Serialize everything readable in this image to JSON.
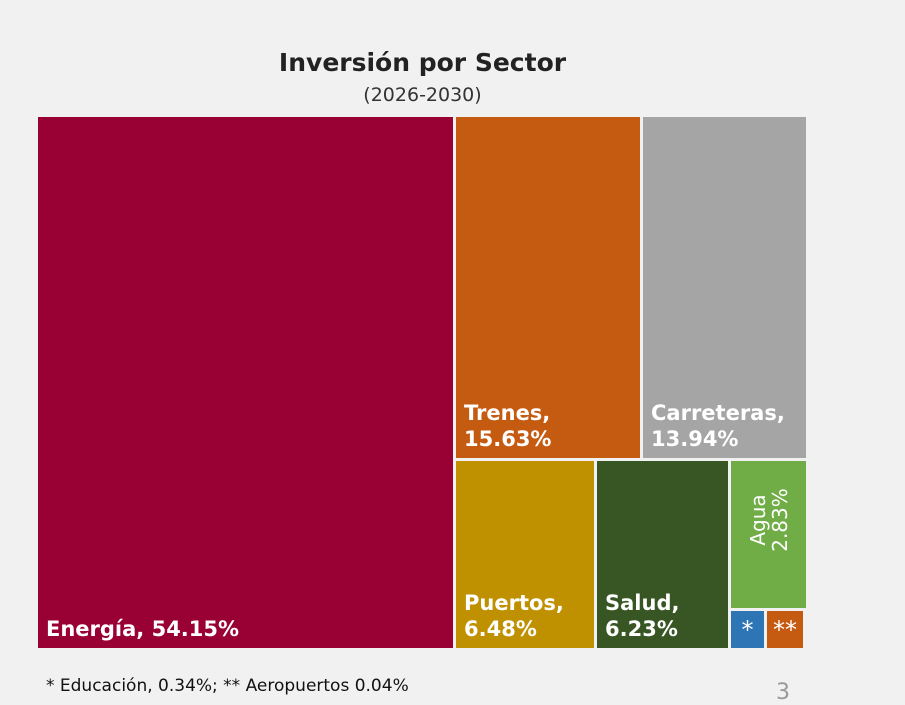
{
  "chart_data": {
    "type": "treemap",
    "title": "Inversión por Sector",
    "subtitle": "(2026-2030)",
    "items": [
      {
        "name": "Energía",
        "label": "Energía, 54.15%",
        "value": 54.15,
        "color": "#990033"
      },
      {
        "name": "Trenes",
        "label": "Trenes,\n15.63%",
        "value": 15.63,
        "color": "#c55a11"
      },
      {
        "name": "Carreteras",
        "label": "Carreteras,\n13.94%",
        "value": 13.94,
        "color": "#a5a5a5"
      },
      {
        "name": "Puertos",
        "label": "Puertos,\n6.48%",
        "value": 6.48,
        "color": "#bf9000"
      },
      {
        "name": "Salud",
        "label": "Salud,\n6.23%",
        "value": 6.23,
        "color": "#375623"
      },
      {
        "name": "Agua",
        "label": "Agua\n2.83%",
        "value": 2.83,
        "color": "#70ad47"
      },
      {
        "name": "Educación",
        "label": "*",
        "value": 0.34,
        "color": "#2e75b6"
      },
      {
        "name": "Aeropuertos",
        "label": "**",
        "value": 0.04,
        "color": "#c55a11"
      }
    ],
    "footnote": "* Educación, 0.34%; ** Aeropuertos 0.04%"
  },
  "page_number": "3"
}
